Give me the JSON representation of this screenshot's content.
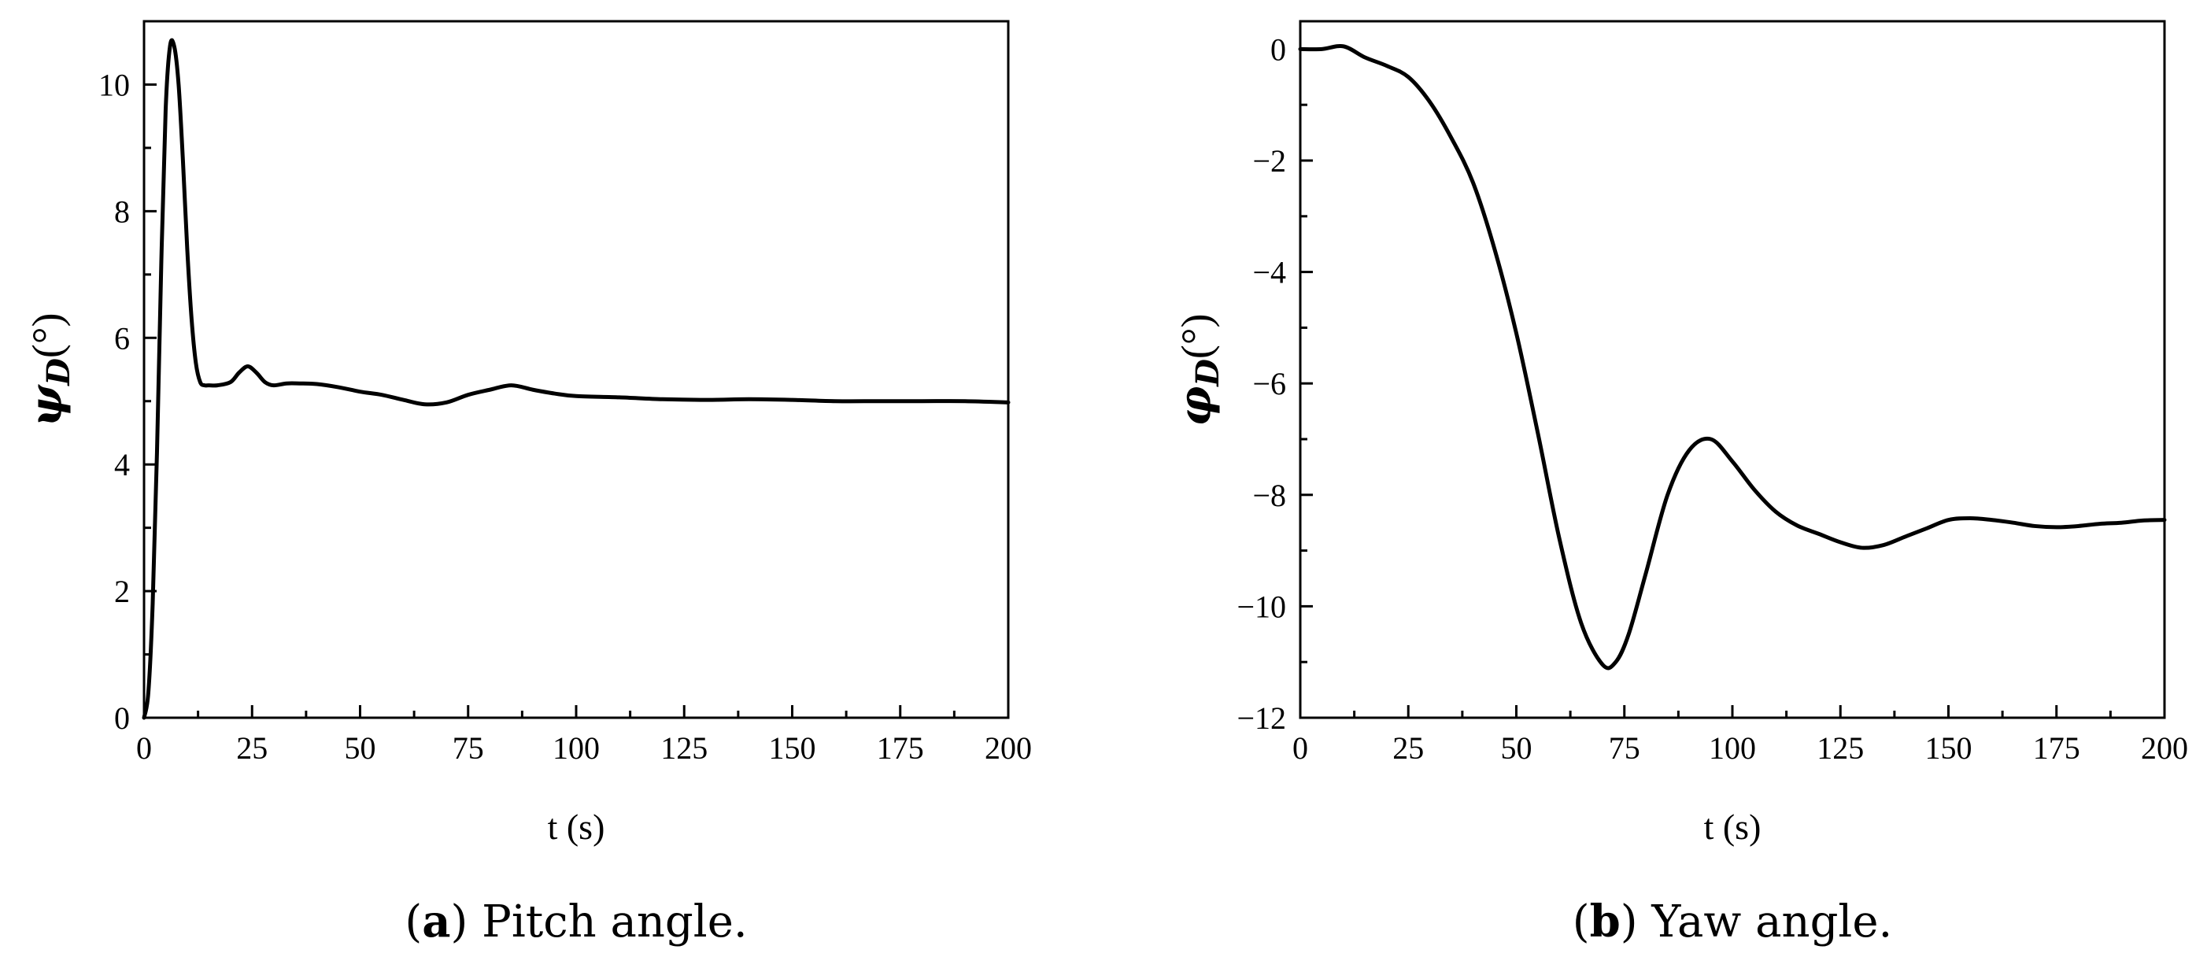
{
  "chart_data": [
    {
      "type": "line",
      "caption": {
        "letter": "a",
        "text": "Pitch angle."
      },
      "xlabel": "t (s)",
      "ylabel": {
        "symbol": "ψ",
        "subscript": "D",
        "unit": "(°)"
      },
      "xlim": [
        0,
        200
      ],
      "ylim": [
        0,
        11
      ],
      "xticks": [
        0,
        25,
        50,
        75,
        100,
        125,
        150,
        175,
        200
      ],
      "yticks": [
        0,
        2,
        4,
        6,
        8,
        10
      ],
      "grid": false,
      "series": [
        {
          "x": [
            0,
            1,
            2,
            3,
            4,
            5,
            6,
            7,
            8,
            9,
            10,
            11,
            12,
            13,
            14,
            15,
            17,
            20,
            22,
            24,
            26,
            28,
            30,
            33,
            36,
            40,
            45,
            50,
            55,
            60,
            65,
            70,
            75,
            80,
            85,
            90,
            95,
            100,
            110,
            120,
            130,
            140,
            150,
            160,
            170,
            180,
            190,
            200
          ],
          "y": [
            0.0,
            0.4,
            1.8,
            4.2,
            7.2,
            9.6,
            10.6,
            10.6,
            10.0,
            8.8,
            7.4,
            6.3,
            5.6,
            5.3,
            5.25,
            5.25,
            5.25,
            5.3,
            5.45,
            5.55,
            5.45,
            5.3,
            5.25,
            5.28,
            5.28,
            5.27,
            5.22,
            5.15,
            5.1,
            5.02,
            4.95,
            4.98,
            5.1,
            5.18,
            5.25,
            5.18,
            5.12,
            5.08,
            5.06,
            5.03,
            5.02,
            5.03,
            5.02,
            5.0,
            5.0,
            5.0,
            5.0,
            4.98
          ]
        }
      ]
    },
    {
      "type": "line",
      "caption": {
        "letter": "b",
        "text": "Yaw angle."
      },
      "xlabel": "t (s)",
      "ylabel": {
        "symbol": "φ",
        "subscript": "D",
        "unit": "(°)"
      },
      "xlim": [
        0,
        200
      ],
      "ylim": [
        -12,
        0.5
      ],
      "xticks": [
        0,
        25,
        50,
        75,
        100,
        125,
        150,
        175,
        200
      ],
      "yticks": [
        0,
        -2,
        -4,
        -6,
        -8,
        -10,
        -12
      ],
      "grid": false,
      "series": [
        {
          "x": [
            0,
            5,
            10,
            15,
            20,
            25,
            30,
            35,
            40,
            45,
            50,
            55,
            60,
            65,
            70,
            73,
            76,
            80,
            85,
            90,
            95,
            100,
            105,
            110,
            115,
            120,
            125,
            130,
            135,
            140,
            145,
            150,
            155,
            160,
            165,
            170,
            175,
            180,
            185,
            190,
            195,
            200
          ],
          "y": [
            0.0,
            0.0,
            0.05,
            -0.15,
            -0.3,
            -0.5,
            -0.95,
            -1.6,
            -2.4,
            -3.6,
            -5.1,
            -6.9,
            -8.8,
            -10.3,
            -11.05,
            -11.0,
            -10.5,
            -9.4,
            -8.0,
            -7.2,
            -7.0,
            -7.4,
            -7.9,
            -8.3,
            -8.55,
            -8.7,
            -8.85,
            -8.95,
            -8.9,
            -8.75,
            -8.6,
            -8.45,
            -8.42,
            -8.45,
            -8.5,
            -8.56,
            -8.58,
            -8.56,
            -8.52,
            -8.5,
            -8.46,
            -8.45
          ]
        }
      ]
    }
  ]
}
